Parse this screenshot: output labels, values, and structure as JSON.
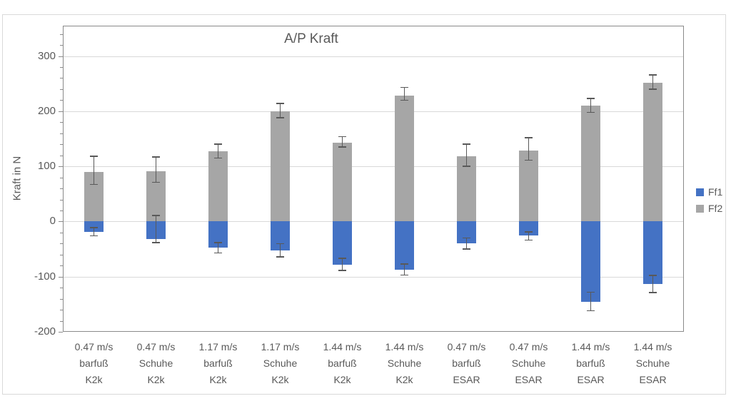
{
  "window": {
    "background": "#ffffff"
  },
  "chart_data": {
    "type": "bar",
    "stacked": true,
    "title": "A/P Kraft",
    "xlabel": "",
    "ylabel": "Kraft in N",
    "ylim": [
      -200,
      355
    ],
    "yticks": [
      300,
      200,
      100,
      0,
      -100,
      -200
    ],
    "yminor_step": 20,
    "grid": true,
    "legend_position": "right",
    "categories": [
      [
        "0.47 m/s",
        "barfuß",
        "K2k"
      ],
      [
        "0.47 m/s",
        "Schuhe",
        "K2k"
      ],
      [
        "1.17 m/s",
        "barfuß",
        "K2k"
      ],
      [
        "1.17 m/s",
        "Schuhe",
        "K2k"
      ],
      [
        "1.44 m/s",
        "barfuß",
        "K2k"
      ],
      [
        "1.44 m/s",
        "Schuhe",
        "K2k"
      ],
      [
        "0.47 m/s",
        "barfuß",
        "ESAR"
      ],
      [
        "0.47 m/s",
        "Schuhe",
        "ESAR"
      ],
      [
        "1.44 m/s",
        "barfuß",
        "ESAR"
      ],
      [
        "1.44 m/s",
        "Schuhe",
        "ESAR"
      ]
    ],
    "series": [
      {
        "name": "Ff1",
        "color": "#4472c4",
        "values": [
          -19,
          -32,
          -47,
          -53,
          -78,
          -87,
          -40,
          -26,
          -146,
          -113
        ],
        "whisker_hi": [
          -11,
          11,
          -38,
          -40,
          -67,
          -77,
          -30,
          -19,
          -128,
          -98
        ],
        "whisker_lo": [
          -26,
          -38,
          -57,
          -64,
          -89,
          -97,
          -50,
          -34,
          -162,
          -129
        ]
      },
      {
        "name": "Ff2",
        "color": "#a6a6a6",
        "values": [
          90,
          91,
          127,
          200,
          143,
          228,
          118,
          129,
          210,
          252
        ],
        "whisker_hi": [
          118,
          117,
          140,
          214,
          154,
          243,
          140,
          152,
          223,
          266
        ],
        "whisker_lo": [
          67,
          71,
          115,
          188,
          135,
          220,
          100,
          111,
          198,
          240
        ]
      }
    ]
  },
  "legend": {
    "items": [
      {
        "label": "Ff1",
        "color": "#4472c4"
      },
      {
        "label": "Ff2",
        "color": "#a6a6a6"
      }
    ]
  },
  "colors": {
    "error_bar": "#595959",
    "gridline": "#d9d9d9",
    "axis": "#8a8a8a",
    "text": "#595959",
    "frame_border": "#d9d9d9",
    "bar_blue": "#4472c4",
    "bar_gray": "#a6a6a6"
  }
}
